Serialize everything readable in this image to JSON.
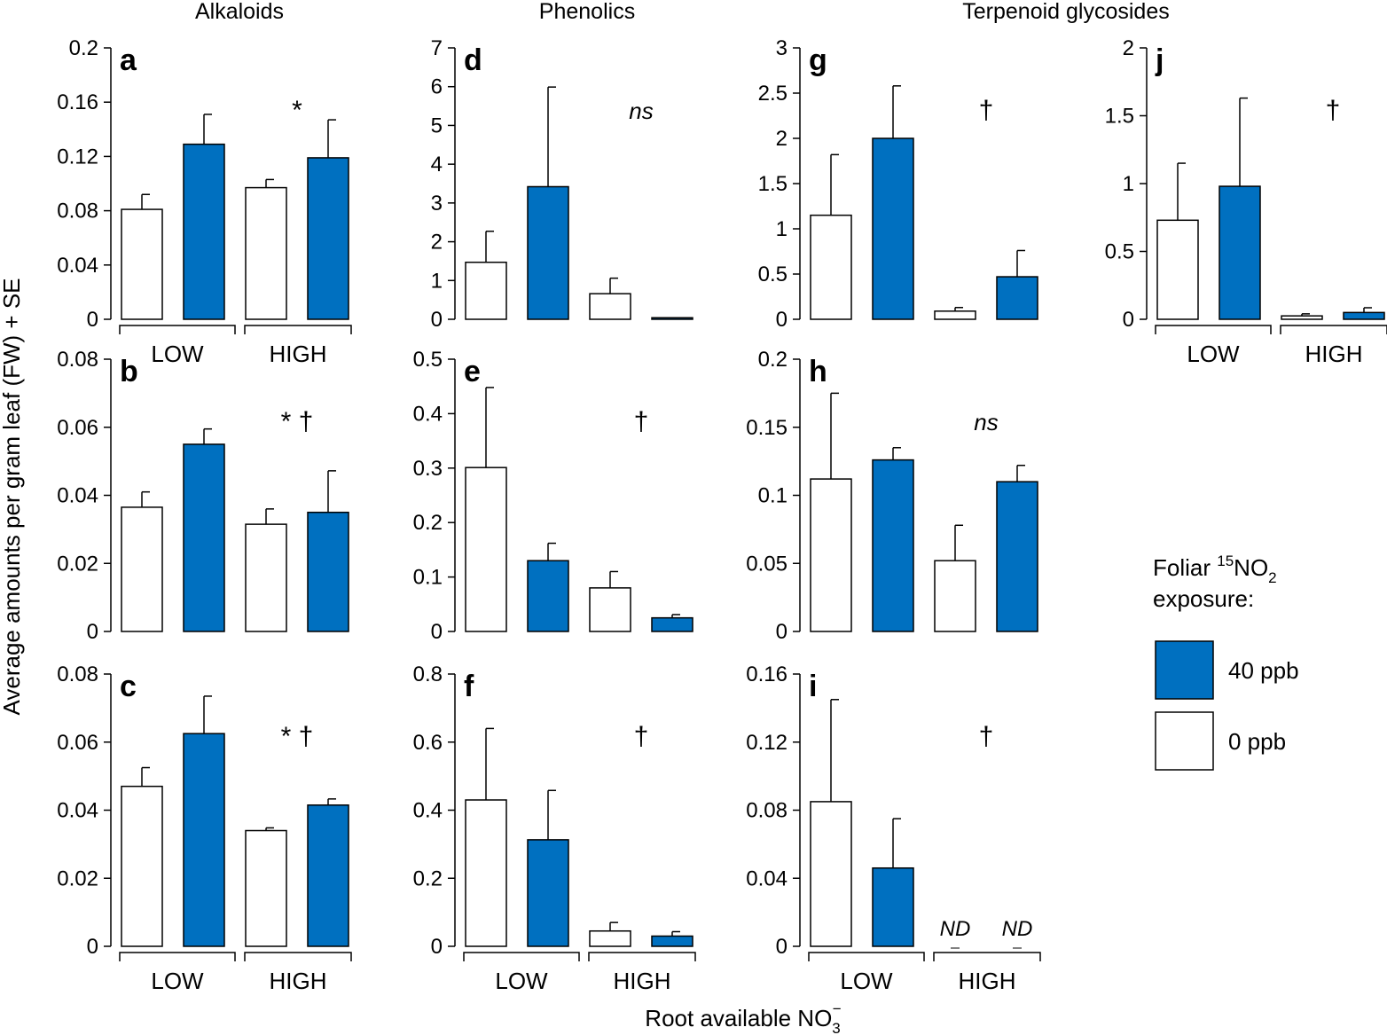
{
  "column_titles": [
    "Alkaloids",
    "Phenolics",
    "Terpenoid glycosides"
  ],
  "y_axis_title": "Average amounts per gram leaf (FW) + SE",
  "x_axis_title": "Root available NO",
  "x_axis_sub": "3",
  "x_axis_sup": "−",
  "legend": {
    "title_prefix": "Foliar ",
    "title_sup": "15",
    "title_mid": "NO",
    "title_sub": "2",
    "title_line2": "exposure:",
    "entries": [
      {
        "label": "40 ppb",
        "color": "#0070c0"
      },
      {
        "label": "0 ppb",
        "color": "#ffffff"
      }
    ]
  },
  "colors": {
    "exposed": "#0070c0",
    "control": "#ffffff",
    "stroke": "#000000"
  },
  "chart_data": [
    {
      "panel": "a",
      "type": "bar",
      "ylim": [
        0,
        0.2
      ],
      "yticks": [
        "0",
        "0.04",
        "0.08",
        "0.12",
        "0.16",
        "0.2"
      ],
      "categories": [
        "LOW",
        "HIGH"
      ],
      "series": [
        {
          "name": "0 ppb",
          "values": [
            0.081,
            0.097
          ],
          "se": [
            0.011,
            0.006
          ]
        },
        {
          "name": "40 ppb",
          "values": [
            0.129,
            0.119
          ],
          "se": [
            0.022,
            0.028
          ]
        }
      ],
      "sig": "*"
    },
    {
      "panel": "b",
      "type": "bar",
      "ylim": [
        0,
        0.08
      ],
      "yticks": [
        "0",
        "0.02",
        "0.04",
        "0.06",
        "0.08"
      ],
      "categories": [
        "LOW",
        "HIGH"
      ],
      "series": [
        {
          "name": "0 ppb",
          "values": [
            0.0365,
            0.0315
          ],
          "se": [
            0.0045,
            0.0045
          ]
        },
        {
          "name": "40 ppb",
          "values": [
            0.055,
            0.035
          ],
          "se": [
            0.0045,
            0.0122
          ]
        }
      ],
      "sig": "* †"
    },
    {
      "panel": "c",
      "type": "bar",
      "ylim": [
        0,
        0.08
      ],
      "yticks": [
        "0",
        "0.02",
        "0.04",
        "0.06",
        "0.08"
      ],
      "categories": [
        "LOW",
        "HIGH"
      ],
      "series": [
        {
          "name": "0 ppb",
          "values": [
            0.047,
            0.034
          ],
          "se": [
            0.0055,
            0.0008
          ]
        },
        {
          "name": "40 ppb",
          "values": [
            0.0625,
            0.0415
          ],
          "se": [
            0.011,
            0.0018
          ]
        }
      ],
      "sig": "* †"
    },
    {
      "panel": "d",
      "type": "bar",
      "ylim": [
        0,
        7
      ],
      "yticks": [
        "0",
        "1",
        "2",
        "3",
        "4",
        "5",
        "6",
        "7"
      ],
      "categories": [
        "LOW",
        "HIGH"
      ],
      "series": [
        {
          "name": "0 ppb",
          "values": [
            1.47,
            0.66
          ],
          "se": [
            0.8,
            0.4
          ]
        },
        {
          "name": "40 ppb",
          "values": [
            3.42,
            0.04
          ],
          "se": [
            2.57,
            0.0
          ]
        }
      ],
      "sig": "ns"
    },
    {
      "panel": "e",
      "type": "bar",
      "ylim": [
        0,
        0.5
      ],
      "yticks": [
        "0",
        "0.1",
        "0.2",
        "0.3",
        "0.4",
        "0.5"
      ],
      "categories": [
        "LOW",
        "HIGH"
      ],
      "series": [
        {
          "name": "0 ppb",
          "values": [
            0.301,
            0.08
          ],
          "se": [
            0.147,
            0.03
          ]
        },
        {
          "name": "40 ppb",
          "values": [
            0.13,
            0.025
          ],
          "se": [
            0.032,
            0.006
          ]
        }
      ],
      "sig": "†"
    },
    {
      "panel": "f",
      "type": "bar",
      "ylim": [
        0,
        0.8
      ],
      "yticks": [
        "0",
        "0.2",
        "0.4",
        "0.6",
        "0.8"
      ],
      "categories": [
        "LOW",
        "HIGH"
      ],
      "series": [
        {
          "name": "0 ppb",
          "values": [
            0.43,
            0.045
          ],
          "se": [
            0.21,
            0.025
          ]
        },
        {
          "name": "40 ppb",
          "values": [
            0.313,
            0.03
          ],
          "se": [
            0.145,
            0.013
          ]
        }
      ],
      "sig": "†"
    },
    {
      "panel": "g",
      "type": "bar",
      "ylim": [
        0,
        3
      ],
      "yticks": [
        "0",
        "0.5",
        "1",
        "1.5",
        "2",
        "2.5",
        "3"
      ],
      "categories": [
        "LOW",
        "HIGH"
      ],
      "series": [
        {
          "name": "0 ppb",
          "values": [
            1.15,
            0.09
          ],
          "se": [
            0.67,
            0.04
          ]
        },
        {
          "name": "40 ppb",
          "values": [
            2.0,
            0.47
          ],
          "se": [
            0.58,
            0.29
          ]
        }
      ],
      "sig": "†"
    },
    {
      "panel": "h",
      "type": "bar",
      "ylim": [
        0,
        0.2
      ],
      "yticks": [
        "0",
        "0.05",
        "0.1",
        "0.15",
        "0.2"
      ],
      "categories": [
        "LOW",
        "HIGH"
      ],
      "series": [
        {
          "name": "0 ppb",
          "values": [
            0.112,
            0.052
          ],
          "se": [
            0.063,
            0.026
          ]
        },
        {
          "name": "40 ppb",
          "values": [
            0.126,
            0.11
          ],
          "se": [
            0.009,
            0.012
          ]
        }
      ],
      "sig": "ns"
    },
    {
      "panel": "i",
      "type": "bar",
      "ylim": [
        0,
        0.16
      ],
      "yticks": [
        "0",
        "0.04",
        "0.08",
        "0.12",
        "0.16"
      ],
      "categories": [
        "LOW",
        "HIGH"
      ],
      "series": [
        {
          "name": "0 ppb",
          "values": [
            0.085,
            null
          ],
          "se": [
            0.06,
            null
          ]
        },
        {
          "name": "40 ppb",
          "values": [
            0.046,
            null
          ],
          "se": [
            0.029,
            null
          ]
        }
      ],
      "missing_label": "ND",
      "sig": "†"
    },
    {
      "panel": "j",
      "type": "bar",
      "ylim": [
        0,
        2
      ],
      "yticks": [
        "0",
        "0.5",
        "1",
        "1.5",
        "2"
      ],
      "categories": [
        "LOW",
        "HIGH"
      ],
      "series": [
        {
          "name": "0 ppb",
          "values": [
            0.73,
            0.025
          ],
          "se": [
            0.42,
            0.015
          ]
        },
        {
          "name": "40 ppb",
          "values": [
            0.98,
            0.05
          ],
          "se": [
            0.65,
            0.035
          ]
        }
      ],
      "sig": "†"
    }
  ]
}
